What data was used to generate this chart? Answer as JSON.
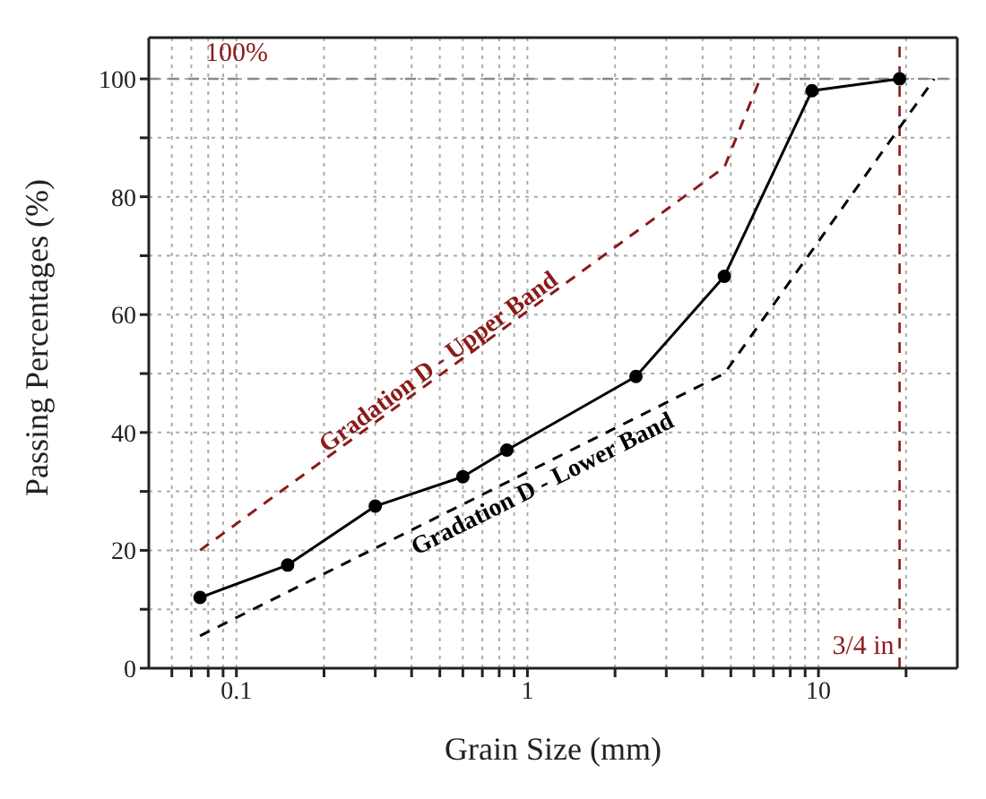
{
  "chart_data": {
    "type": "line",
    "xlabel": "Grain Size (mm)",
    "ylabel": "Passing Percentages (%)",
    "log": "x",
    "grid": true,
    "legend": false,
    "xlim": [
      0.05,
      30
    ],
    "xticks": [
      {
        "value": 0.06,
        "label": null
      },
      {
        "value": 0.07,
        "label": null
      },
      {
        "value": 0.08,
        "label": null
      },
      {
        "value": 0.09,
        "label": null
      },
      0.1,
      {
        "value": 0.2,
        "label": null
      },
      {
        "value": 0.3,
        "label": null
      },
      {
        "value": 0.4,
        "label": null
      },
      {
        "value": 0.5,
        "label": null
      },
      {
        "value": 0.6,
        "label": null
      },
      {
        "value": 0.7,
        "label": null
      },
      {
        "value": 0.8,
        "label": null
      },
      {
        "value": 0.9,
        "label": null
      },
      1,
      {
        "value": 2,
        "label": null
      },
      {
        "value": 3,
        "label": null
      },
      {
        "value": 4,
        "label": null
      },
      {
        "value": 5,
        "label": null
      },
      {
        "value": 6,
        "label": null
      },
      {
        "value": 7,
        "label": null
      },
      {
        "value": 8,
        "label": null
      },
      {
        "value": 9,
        "label": null
      },
      10,
      {
        "value": 20,
        "label": null
      }
    ],
    "ylim": [
      0,
      107
    ],
    "yticks": [
      0,
      {
        "value": 10,
        "label": null
      },
      20,
      {
        "value": 30,
        "label": null
      },
      40,
      {
        "value": 50,
        "label": null
      },
      60,
      {
        "value": 70,
        "label": null
      },
      80,
      {
        "value": 90,
        "label": null
      },
      100
    ],
    "series": [
      {
        "color": "#000000",
        "marker": "circle",
        "line_style": "solid",
        "x": [
          0.075,
          0.15,
          0.3,
          0.6,
          0.85,
          2.36,
          4.75,
          9.5,
          19
        ],
        "values": [
          12,
          17.5,
          27.5,
          32.5,
          37,
          49.5,
          66.5,
          98,
          100
        ]
      },
      {
        "name": "Gradation D - Upper Band",
        "color": "#8b1a1a",
        "marker": "none",
        "line_style": "dashed",
        "x": [
          0.075,
          4.75,
          6.3
        ],
        "values": [
          20,
          85,
          100
        ]
      },
      {
        "name": "Gradation D - Lower Band",
        "color": "#000000",
        "marker": "none",
        "line_style": "dashed",
        "x": [
          0.075,
          4.75,
          25
        ],
        "values": [
          5.5,
          50,
          100
        ]
      }
    ],
    "ref_lines": [
      {
        "axis": "y",
        "value": 100,
        "label": "100%",
        "color": "#888888",
        "line_style": "dashed"
      },
      {
        "axis": "x",
        "value": 19,
        "label": "3/4 in",
        "color": "#8b1a1a",
        "line_style": "dashed"
      }
    ]
  }
}
